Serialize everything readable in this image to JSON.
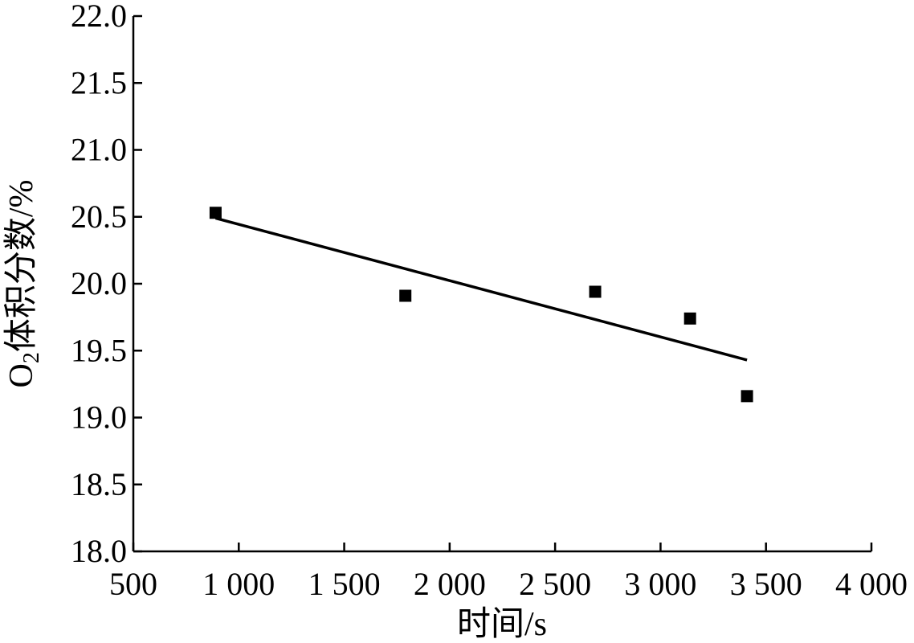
{
  "chart_data": {
    "type": "scatter",
    "xlabel": "时间/s",
    "ylabel_main": "O",
    "ylabel_sub": "2",
    "ylabel_rest": "体积分数/%",
    "xlim": [
      500,
      4000
    ],
    "ylim": [
      18.0,
      22.0
    ],
    "x_ticks": [
      500,
      1000,
      1500,
      2000,
      2500,
      3000,
      3500,
      4000
    ],
    "x_tick_labels": [
      "500",
      "1 000",
      "1 500",
      "2 000",
      "2 500",
      "3 000",
      "3 500",
      "4 000"
    ],
    "y_ticks": [
      18.0,
      18.5,
      19.0,
      19.5,
      20.0,
      20.5,
      21.0,
      21.5,
      22.0
    ],
    "y_tick_labels": [
      "18.0",
      "18.5",
      "19.0",
      "19.5",
      "20.0",
      "20.5",
      "21.0",
      "21.5",
      "22.0"
    ],
    "points": [
      {
        "x": 890,
        "y": 20.53
      },
      {
        "x": 1790,
        "y": 19.91
      },
      {
        "x": 2690,
        "y": 19.94
      },
      {
        "x": 3140,
        "y": 19.74
      },
      {
        "x": 3410,
        "y": 19.16
      }
    ],
    "trendline": {
      "x": [
        890,
        3410
      ],
      "y": [
        20.49,
        19.43
      ]
    },
    "grid": false,
    "marker": "square",
    "color": "#000000"
  }
}
